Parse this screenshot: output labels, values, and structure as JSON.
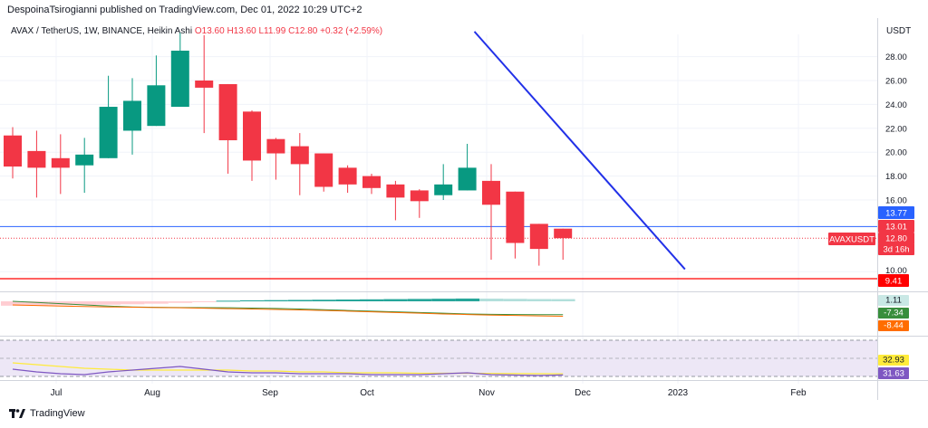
{
  "header": {
    "publisher": "DespoinaTsirogianni published on TradingView.com, Dec 01, 2022 10:29 UTC+2",
    "symbol": "AVAX / TetherUS, 1W, BINANCE, Heikin Ashi",
    "ohlc": "O13.60  H13.60  L11.99  C12.80  +0.32 (+2.59%)",
    "currency": "USDT"
  },
  "footer": {
    "brand": "TradingView"
  },
  "colors": {
    "up": "#089981",
    "down": "#f23645",
    "trendline": "#2231e8",
    "hline_blue": "#2962ff",
    "hline_red": "#f23645",
    "rsi": "#7e57c2",
    "rsi_ma": "#ffeb3b",
    "rsi_band": "#ede7f6"
  },
  "chart_data": [
    {
      "type": "candlestick",
      "variant": "Heikin Ashi",
      "title": "AVAX / TetherUS, 1W, BINANCE, Heikin Ashi",
      "y_axis_label": "USDT",
      "y_ticks": [
        10.0,
        16.0,
        18.0,
        20.0,
        22.0,
        24.0,
        26.0,
        28.0
      ],
      "x_ticks": [
        "Jul",
        "Aug",
        "Sep",
        "Oct",
        "Nov",
        "Dec",
        "2023",
        "Feb"
      ],
      "candles": [
        {
          "o": 21.4,
          "h": 22.1,
          "l": 17.8,
          "c": 18.8
        },
        {
          "o": 20.1,
          "h": 21.8,
          "l": 16.2,
          "c": 18.7
        },
        {
          "o": 19.5,
          "h": 21.5,
          "l": 16.5,
          "c": 18.7
        },
        {
          "o": 18.9,
          "h": 21.2,
          "l": 16.6,
          "c": 19.8
        },
        {
          "o": 19.5,
          "h": 26.4,
          "l": 19.5,
          "c": 23.8
        },
        {
          "o": 21.8,
          "h": 26.2,
          "l": 19.8,
          "c": 24.3
        },
        {
          "o": 22.2,
          "h": 28.1,
          "l": 22.2,
          "c": 25.6
        },
        {
          "o": 23.8,
          "h": 30.0,
          "l": 23.8,
          "c": 28.5
        },
        {
          "o": 26.0,
          "h": 29.8,
          "l": 21.6,
          "c": 25.4
        },
        {
          "o": 25.7,
          "h": 25.7,
          "l": 18.2,
          "c": 21.0
        },
        {
          "o": 23.4,
          "h": 23.5,
          "l": 17.6,
          "c": 19.3
        },
        {
          "o": 21.1,
          "h": 21.2,
          "l": 17.7,
          "c": 19.9
        },
        {
          "o": 20.5,
          "h": 21.6,
          "l": 16.4,
          "c": 19.0
        },
        {
          "o": 19.9,
          "h": 19.9,
          "l": 16.7,
          "c": 17.1
        },
        {
          "o": 18.7,
          "h": 18.9,
          "l": 16.6,
          "c": 17.3
        },
        {
          "o": 18.0,
          "h": 18.2,
          "l": 16.5,
          "c": 17.0
        },
        {
          "o": 17.3,
          "h": 17.6,
          "l": 14.3,
          "c": 16.2
        },
        {
          "o": 16.8,
          "h": 16.9,
          "l": 14.5,
          "c": 15.9
        },
        {
          "o": 16.4,
          "h": 19.0,
          "l": 16.0,
          "c": 17.3
        },
        {
          "o": 16.8,
          "h": 20.7,
          "l": 16.8,
          "c": 18.7
        },
        {
          "o": 17.6,
          "h": 19.0,
          "l": 11.0,
          "c": 15.6
        },
        {
          "o": 16.7,
          "h": 16.7,
          "l": 11.1,
          "c": 12.4
        },
        {
          "o": 14.0,
          "h": 14.0,
          "l": 10.5,
          "c": 11.9
        },
        {
          "o": 13.6,
          "h": 13.6,
          "l": 11.0,
          "c": 12.8
        }
      ],
      "trendline": {
        "from": {
          "bar": 19.3,
          "y": 30.1
        },
        "to": {
          "bar": 28.1,
          "y": 10.2
        }
      },
      "horizontal_lines": [
        {
          "y": 13.77,
          "color": "blue"
        },
        {
          "y": 9.41,
          "color": "red"
        }
      ],
      "price_labels": [
        {
          "text": "13.77",
          "bg": "#2962ff"
        },
        {
          "text": "13.01",
          "bg": "#f23645"
        },
        {
          "text": "AVAXUSDT",
          "bg": "#f23645"
        },
        {
          "text": "12.80",
          "bg": "#f23645"
        },
        {
          "text": "3d 16h",
          "bg": "#f23645"
        },
        {
          "text": "10.00",
          "bg": "none"
        },
        {
          "text": "9.41",
          "bg": "#ff0000"
        }
      ]
    },
    {
      "type": "histogram+line",
      "name": "MACD",
      "labels": [
        {
          "text": "1.11",
          "bg": "#c9e8e5"
        },
        {
          "text": "-7.34",
          "bg": "#388e3c"
        },
        {
          "text": "-8.44",
          "bg": "#ff6d00"
        }
      ],
      "histogram": [
        -2.2,
        -2.1,
        -2.0,
        -1.9,
        -1.7,
        -1.5,
        -1.2,
        -0.8,
        -0.2,
        0.3,
        0.5,
        0.6,
        0.7,
        0.8,
        0.9,
        1.0,
        1.1,
        1.2,
        1.3,
        1.4,
        1.35,
        1.25,
        1.15,
        1.11
      ],
      "macd": [
        2.2,
        1.4,
        0.5,
        -0.4,
        -1.2,
        -1.8,
        -2.1,
        -2.2,
        -2.3,
        -2.4,
        -2.6,
        -2.9,
        -3.3,
        -3.8,
        -4.3,
        -4.8,
        -5.3,
        -5.8,
        -6.3,
        -6.8,
        -7.1,
        -7.2,
        -7.3,
        -7.34
      ],
      "signal": [
        -0.4,
        -0.8,
        -1.2,
        -1.5,
        -1.8,
        -2.0,
        -2.2,
        -2.4,
        -2.7,
        -3.0,
        -3.3,
        -3.6,
        -3.9,
        -4.3,
        -4.8,
        -5.3,
        -5.8,
        -6.3,
        -6.8,
        -7.2,
        -7.6,
        -7.9,
        -8.2,
        -8.44
      ]
    },
    {
      "type": "line",
      "name": "RSI",
      "labels": [
        {
          "text": "32.93",
          "bg": "#ffeb3b"
        },
        {
          "text": "31.63",
          "bg": "#7e57c2"
        }
      ],
      "rsi": [
        38,
        35,
        33,
        32,
        35,
        37,
        39,
        41,
        38,
        35,
        34,
        34,
        33,
        33,
        33,
        32,
        32,
        32,
        33,
        34,
        32,
        31.5,
        31,
        31.63
      ],
      "rsi_ma": [
        45,
        43,
        41,
        39,
        38,
        37,
        37,
        37,
        37,
        37,
        36,
        36,
        35,
        35,
        34,
        34,
        34,
        33.5,
        33.5,
        33.5,
        33.3,
        33.1,
        33,
        32.93
      ]
    }
  ]
}
